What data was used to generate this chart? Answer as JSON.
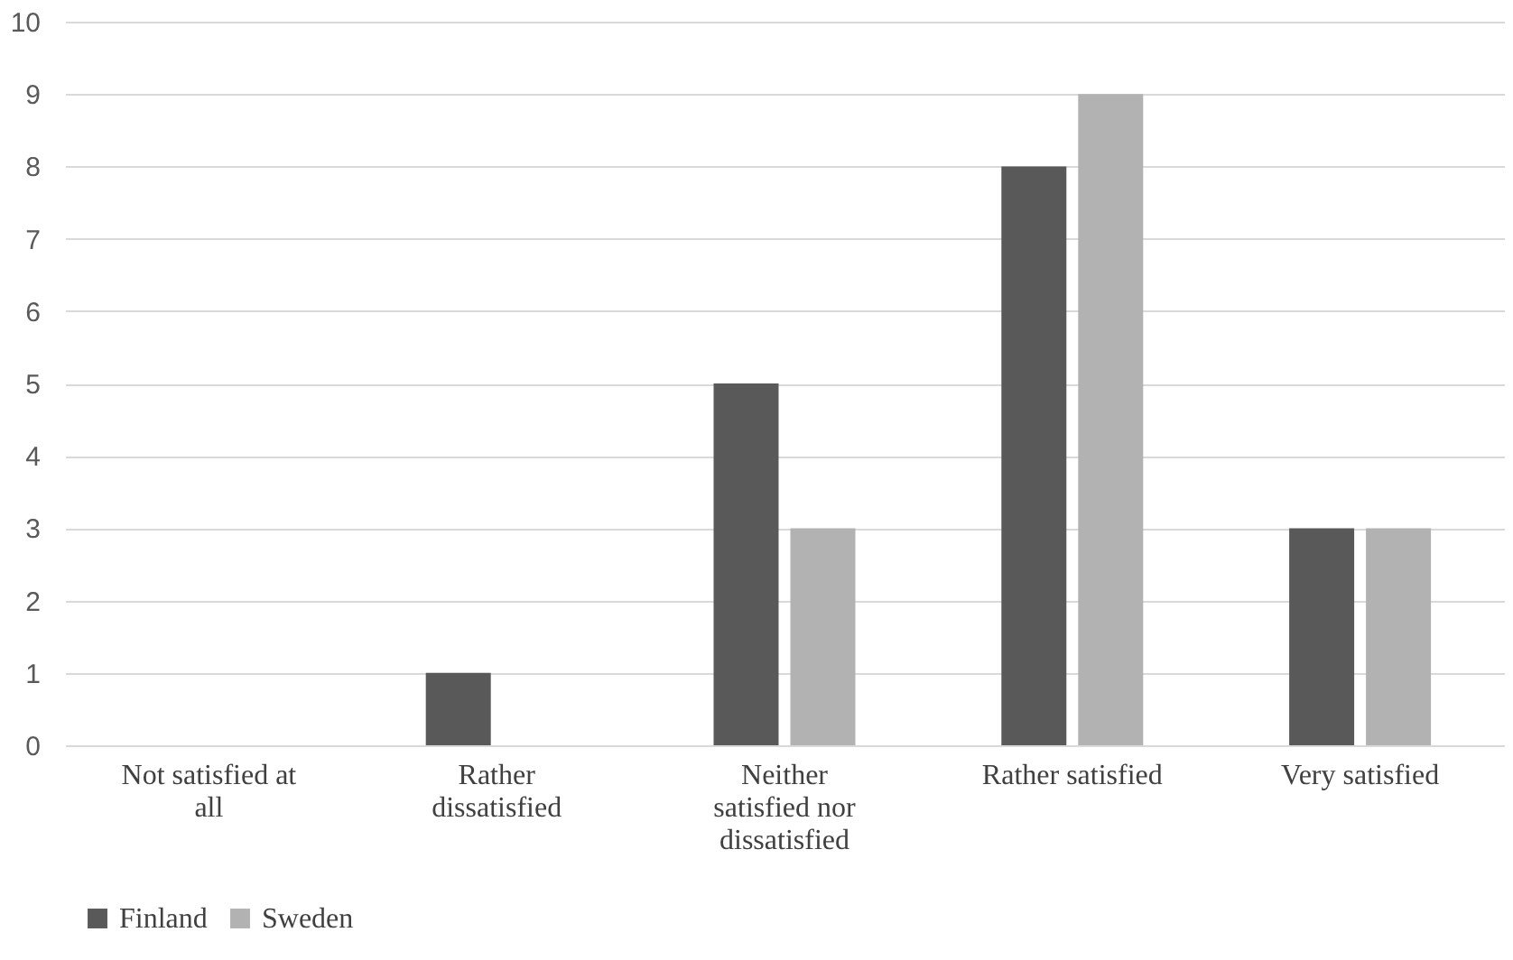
{
  "chart_data": {
    "type": "bar",
    "categories": [
      "Not satisfied at all",
      "Rather dissatisfied",
      "Neither satisfied nor dissatisfied",
      "Rather satisfied",
      "Very satisfied"
    ],
    "series": [
      {
        "name": "Finland",
        "color": "#595959",
        "values": [
          0,
          1,
          5,
          8,
          3
        ]
      },
      {
        "name": "Sweden",
        "color": "#b2b2b2",
        "values": [
          0,
          0,
          3,
          9,
          3
        ]
      }
    ],
    "ylim": [
      0,
      10
    ],
    "yticks": [
      0,
      1,
      2,
      3,
      4,
      5,
      6,
      7,
      8,
      9,
      10
    ],
    "grid": "y",
    "legend": "bottom"
  }
}
